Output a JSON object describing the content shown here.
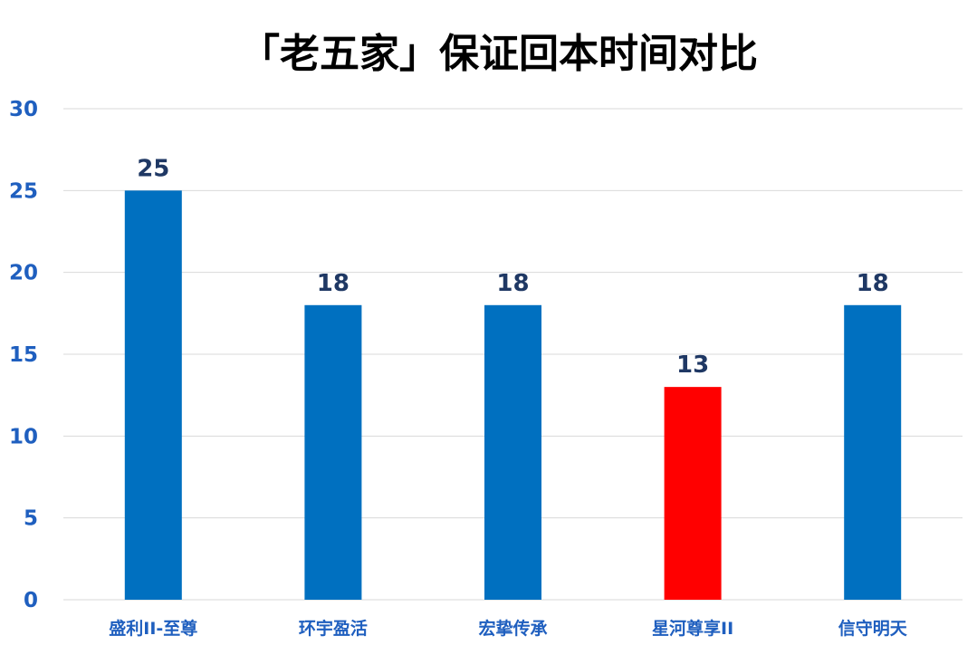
{
  "chart_data": {
    "type": "bar",
    "title": "「老五家」保证回本时间对比",
    "categories": [
      "盛利II-至尊",
      "环宇盈活",
      "宏挚传承",
      "星河尊享II",
      "信守明天"
    ],
    "values": [
      25,
      18,
      18,
      13,
      18
    ],
    "ylim": [
      0,
      30
    ],
    "yticks": [
      0,
      5,
      10,
      15,
      20,
      25,
      30
    ],
    "grid": true,
    "legend": "none",
    "data_labels": true,
    "colors": {
      "bar_default": "#0070C0",
      "bar_highlight": "#FF0000",
      "highlight_index": 3,
      "axis_text": "#1F5FBF",
      "category_text": "#1F5FBF",
      "data_label_text": "#1F3864",
      "gridline": "#D9D9D9"
    }
  }
}
